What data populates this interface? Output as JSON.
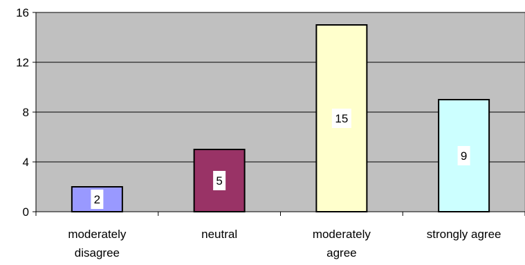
{
  "chart_data": {
    "type": "bar",
    "categories": [
      [
        "moderately",
        "disagree"
      ],
      [
        "neutral"
      ],
      [
        "moderately",
        "agree"
      ],
      [
        "strongly agree"
      ]
    ],
    "values": [
      2,
      5,
      15,
      9
    ],
    "data_labels": [
      "2",
      "5",
      "15",
      "9"
    ],
    "ylim": [
      0,
      16
    ],
    "yticks": [
      0,
      4,
      8,
      12,
      16
    ],
    "ytick_labels": [
      "0",
      "4",
      "8",
      "12",
      "16"
    ],
    "grid": true,
    "legend": "none",
    "colors": {
      "plot_background": "#c0c0c0",
      "bars": [
        "#9999ff",
        "#993366",
        "#ffffcc",
        "#ccffff"
      ],
      "bar_outline": "#000000",
      "gridline": "#000000"
    }
  }
}
